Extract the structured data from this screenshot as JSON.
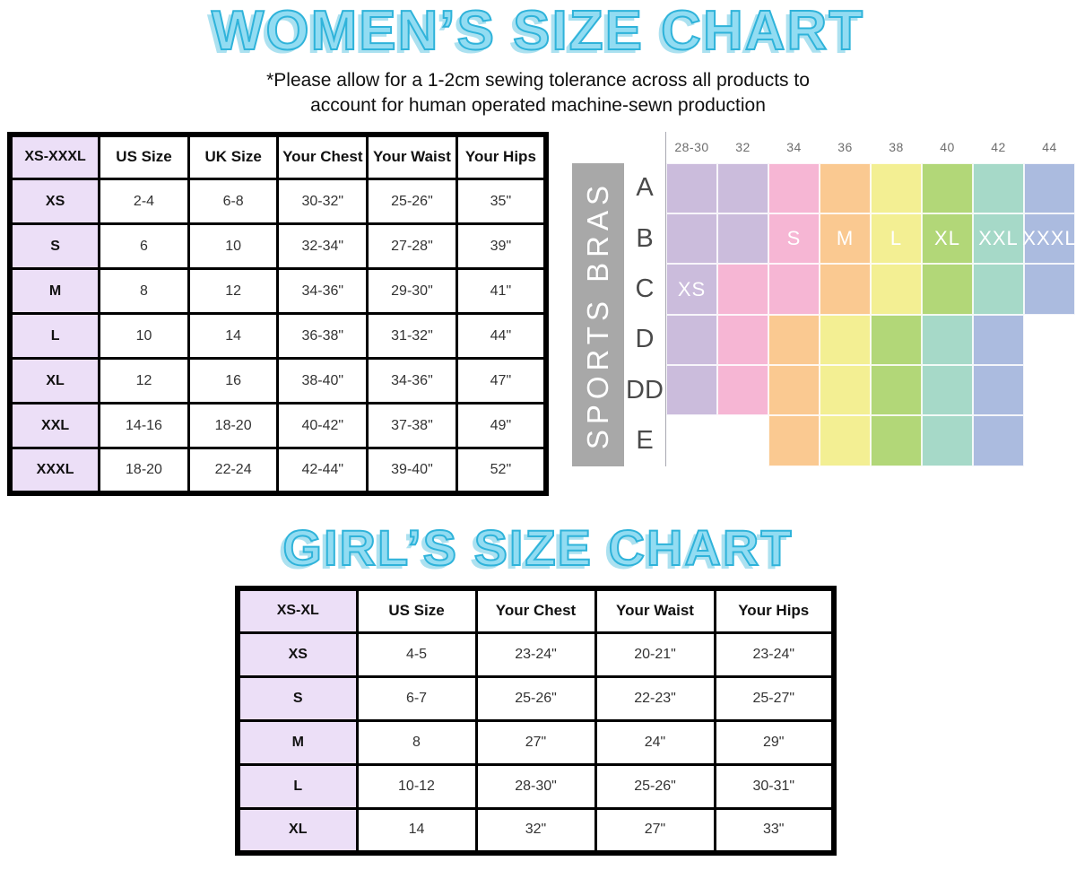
{
  "colors": {
    "title_fill": "#92dcf2",
    "title_outline": "#2fb3da",
    "lavender": "#ecdff7",
    "bar_bg": "#a8a8a8",
    "size_colors": {
      "XS": "#cbbcdc",
      "S": "#f6b6d4",
      "M": "#fac991",
      "L": "#f3ef93",
      "XL": "#b2d778",
      "XXL": "#a6d9c8",
      "XXXL": "#abbbdf"
    }
  },
  "women": {
    "title": "WOMEN’S SIZE CHART",
    "subtitle_line1": "*Please allow for a 1-2cm sewing tolerance across all products to",
    "subtitle_line2": "account for human operated machine-sewn production",
    "table": {
      "headers": [
        "XS-XXXL",
        "US Size",
        "UK Size",
        "Your Chest",
        "Your Waist",
        "Your Hips"
      ],
      "rows": [
        [
          "XS",
          "2-4",
          "6-8",
          "30-32\"",
          "25-26\"",
          "35\""
        ],
        [
          "S",
          "6",
          "10",
          "32-34\"",
          "27-28\"",
          "39\""
        ],
        [
          "M",
          "8",
          "12",
          "34-36\"",
          "29-30\"",
          "41\""
        ],
        [
          "L",
          "10",
          "14",
          "36-38\"",
          "31-32\"",
          "44\""
        ],
        [
          "XL",
          "12",
          "16",
          "38-40\"",
          "34-36\"",
          "47\""
        ],
        [
          "XXL",
          "14-16",
          "18-20",
          "40-42\"",
          "37-38\"",
          "49\""
        ],
        [
          "XXXL",
          "18-20",
          "22-24",
          "42-44\"",
          "39-40\"",
          "52\""
        ]
      ]
    }
  },
  "sports_bras": {
    "label": "SPORTS BRAS",
    "band_sizes": [
      "28-30",
      "32",
      "34",
      "36",
      "38",
      "40",
      "42",
      "44"
    ],
    "rows": [
      {
        "cup": "A",
        "cells": [
          {
            "size": "XS"
          },
          {
            "size": "XS"
          },
          {
            "size": "S"
          },
          {
            "size": "M"
          },
          {
            "size": "L"
          },
          {
            "size": "XL"
          },
          {
            "size": "XXL"
          },
          {
            "size": "XXXL"
          }
        ]
      },
      {
        "cup": "B",
        "cells": [
          {
            "size": "XS"
          },
          {
            "size": "XS"
          },
          {
            "size": "S",
            "label": "S"
          },
          {
            "size": "M",
            "label": "M"
          },
          {
            "size": "L",
            "label": "L"
          },
          {
            "size": "XL",
            "label": "XL"
          },
          {
            "size": "XXL",
            "label": "XXL"
          },
          {
            "size": "XXXL",
            "label": "XXXL"
          }
        ]
      },
      {
        "cup": "C",
        "cells": [
          {
            "size": "XS",
            "label": "XS"
          },
          {
            "size": "S"
          },
          {
            "size": "S"
          },
          {
            "size": "M"
          },
          {
            "size": "L"
          },
          {
            "size": "XL"
          },
          {
            "size": "XXL"
          },
          {
            "size": "XXXL"
          }
        ]
      },
      {
        "cup": "D",
        "cells": [
          {
            "size": "XS"
          },
          {
            "size": "S"
          },
          {
            "size": "M"
          },
          {
            "size": "L"
          },
          {
            "size": "XL"
          },
          {
            "size": "XXL"
          },
          {
            "size": "XXXL"
          },
          null
        ]
      },
      {
        "cup": "DD",
        "cells": [
          {
            "size": "XS"
          },
          {
            "size": "S"
          },
          {
            "size": "M"
          },
          {
            "size": "L"
          },
          {
            "size": "XL"
          },
          {
            "size": "XXL"
          },
          {
            "size": "XXXL"
          },
          null
        ]
      },
      {
        "cup": "E",
        "cells": [
          null,
          null,
          {
            "size": "M"
          },
          {
            "size": "L"
          },
          {
            "size": "XL"
          },
          {
            "size": "XXL"
          },
          {
            "size": "XXXL"
          },
          null
        ]
      }
    ]
  },
  "girls": {
    "title": "GIRL’S SIZE CHART",
    "table": {
      "headers": [
        "XS-XL",
        "US Size",
        "Your Chest",
        "Your Waist",
        "Your Hips"
      ],
      "rows": [
        [
          "XS",
          "4-5",
          "23-24\"",
          "20-21\"",
          "23-24\""
        ],
        [
          "S",
          "6-7",
          "25-26\"",
          "22-23\"",
          "25-27\""
        ],
        [
          "M",
          "8",
          "27\"",
          "24\"",
          "29\""
        ],
        [
          "L",
          "10-12",
          "28-30\"",
          "25-26\"",
          "30-31\""
        ],
        [
          "XL",
          "14",
          "32\"",
          "27\"",
          "33\""
        ]
      ]
    }
  }
}
